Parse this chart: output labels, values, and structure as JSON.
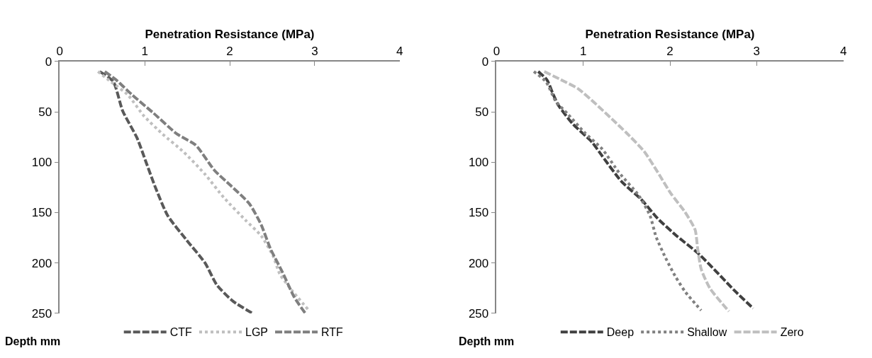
{
  "chart_data": [
    {
      "type": "line",
      "xlabel": "Penetration Resistance (MPa)",
      "ylabel": "Depth mm",
      "xlim": [
        0,
        4
      ],
      "xticks": [
        0,
        1,
        2,
        3,
        4
      ],
      "ylim": [
        250,
        0
      ],
      "yticks": [
        0,
        50,
        100,
        150,
        200,
        250
      ],
      "legend": "bottom",
      "series": [
        {
          "name": "CTF",
          "color": "#595959",
          "line_style": "dashed",
          "x": [
            0.47,
            0.63,
            0.74,
            0.91,
            1.02,
            1.13,
            1.27,
            1.49,
            1.71,
            1.85,
            2.04,
            2.27
          ],
          "values": [
            10,
            20,
            49,
            76,
            101,
            126,
            153,
            177,
            200,
            222,
            238,
            250
          ]
        },
        {
          "name": "LGP",
          "color": "#bfbfbf",
          "line_style": "dotted",
          "x": [
            0.45,
            0.6,
            0.8,
            0.99,
            1.21,
            1.46,
            1.71,
            1.93,
            2.18,
            2.37,
            2.51,
            2.59,
            2.73,
            2.92
          ],
          "values": [
            10,
            20,
            33,
            54,
            72,
            90,
            112,
            135,
            157,
            173,
            193,
            211,
            227,
            246
          ]
        },
        {
          "name": "RTF",
          "color": "#7f7f7f",
          "line_style": "dashed",
          "x": [
            0.53,
            0.66,
            0.85,
            1.1,
            1.38,
            1.6,
            1.82,
            2.01,
            2.23,
            2.37,
            2.48,
            2.62,
            2.76,
            2.89
          ],
          "values": [
            10,
            18,
            33,
            51,
            72,
            83,
            108,
            123,
            141,
            162,
            186,
            209,
            234,
            250
          ]
        }
      ]
    },
    {
      "type": "line",
      "xlabel": "Penetration Resistance (MPa)",
      "ylabel": "Depth mm",
      "xlim": [
        0,
        4
      ],
      "xticks": [
        0,
        1,
        2,
        3,
        4
      ],
      "ylim": [
        250,
        0
      ],
      "yticks": [
        0,
        50,
        100,
        150,
        200,
        250
      ],
      "legend": "bottom",
      "series": [
        {
          "name": "Deep",
          "color": "#404040",
          "line_style": "dashed",
          "x": [
            0.48,
            0.58,
            0.65,
            0.71,
            0.88,
            1.1,
            1.22,
            1.44,
            1.67,
            1.86,
            2.09,
            2.32,
            2.54,
            2.74,
            2.96
          ],
          "values": [
            10,
            18,
            32,
            43,
            62,
            80,
            94,
            119,
            137,
            156,
            174,
            190,
            209,
            227,
            245
          ]
        },
        {
          "name": "Shallow",
          "color": "#808080",
          "line_style": "dotted",
          "x": [
            0.43,
            0.57,
            0.68,
            0.82,
            1.02,
            1.22,
            1.41,
            1.64,
            1.77,
            1.84,
            1.95,
            2.06,
            2.18,
            2.36
          ],
          "values": [
            10,
            20,
            39,
            52,
            71,
            87,
            110,
            133,
            153,
            174,
            195,
            213,
            229,
            247
          ]
        },
        {
          "name": "Zero",
          "color": "#bfbfbf",
          "line_style": "dashed",
          "x": [
            0.55,
            0.74,
            0.94,
            1.13,
            1.33,
            1.5,
            1.7,
            1.86,
            2.01,
            2.17,
            2.29,
            2.32,
            2.36,
            2.46,
            2.68
          ],
          "values": [
            10,
            18,
            27,
            41,
            57,
            71,
            89,
            110,
            131,
            149,
            167,
            186,
            206,
            225,
            248
          ]
        }
      ]
    }
  ]
}
